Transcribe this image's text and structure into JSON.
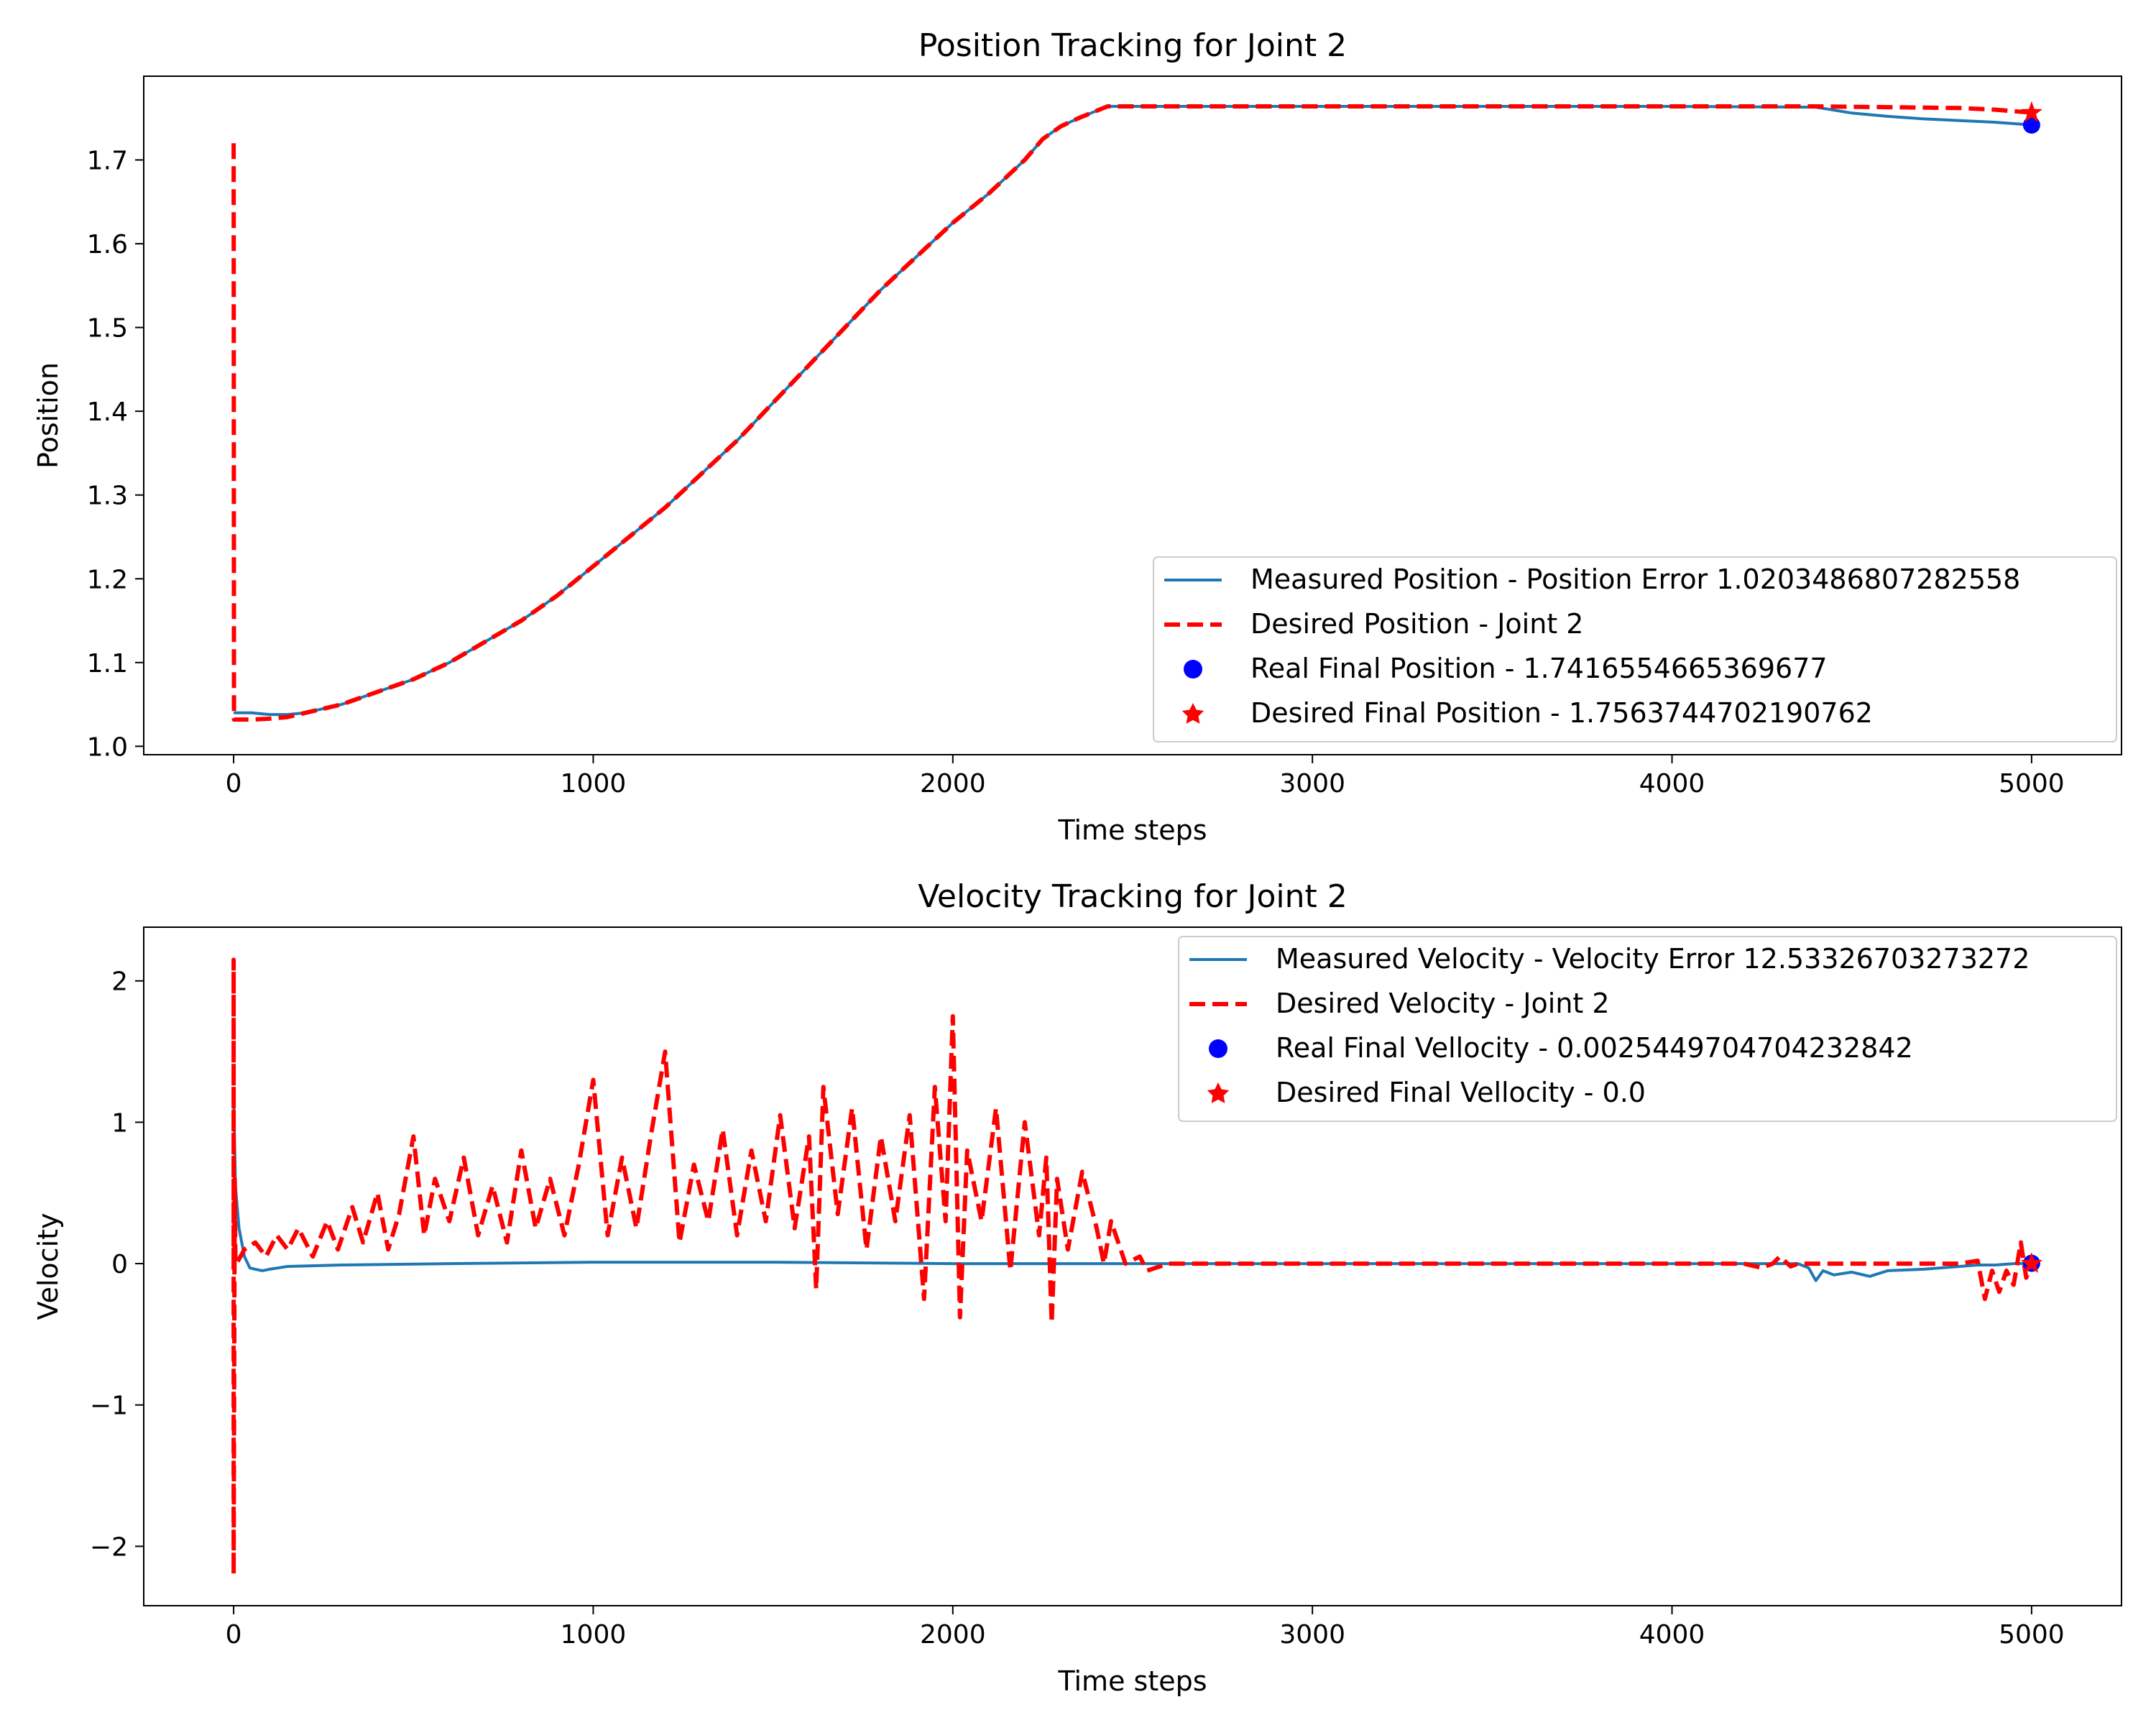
{
  "chart_data": [
    {
      "type": "line",
      "title": "Position Tracking for Joint 2",
      "xlabel": "Time steps",
      "ylabel": "Position",
      "xlim": [
        -250,
        5250
      ],
      "ylim": [
        0.99,
        1.8
      ],
      "xticks": [
        0,
        1000,
        2000,
        3000,
        4000,
        5000
      ],
      "yticks": [
        1.0,
        1.1,
        1.2,
        1.3,
        1.4,
        1.5,
        1.6,
        1.7
      ],
      "ytick_labels": [
        "1.0",
        "1.1",
        "1.2",
        "1.3",
        "1.4",
        "1.5",
        "1.6",
        "1.7"
      ],
      "legend_position": "lower-right",
      "series": [
        {
          "name": "Measured Position - Position Error 1.0203486807282558",
          "style": "solid",
          "color": "#1f77b4",
          "x": [
            0,
            50,
            100,
            150,
            200,
            300,
            400,
            500,
            600,
            700,
            800,
            900,
            1000,
            1100,
            1200,
            1300,
            1400,
            1500,
            1600,
            1700,
            1800,
            1900,
            2000,
            2100,
            2200,
            2250,
            2300,
            2350,
            2430,
            2500,
            3000,
            3500,
            4000,
            4400,
            4500,
            4600,
            4700,
            4800,
            4900,
            5000
          ],
          "y": [
            1.04,
            1.04,
            1.038,
            1.038,
            1.04,
            1.05,
            1.065,
            1.08,
            1.1,
            1.125,
            1.15,
            1.18,
            1.215,
            1.25,
            1.285,
            1.325,
            1.365,
            1.41,
            1.455,
            1.5,
            1.545,
            1.585,
            1.625,
            1.66,
            1.7,
            1.725,
            1.74,
            1.75,
            1.764,
            1.764,
            1.764,
            1.764,
            1.764,
            1.763,
            1.756,
            1.752,
            1.749,
            1.747,
            1.745,
            1.7417
          ]
        },
        {
          "name": "Desired Position - Joint 2",
          "style": "dashed",
          "color": "#ff0000",
          "x": [
            0,
            0,
            1,
            50,
            100,
            150,
            200,
            300,
            400,
            500,
            600,
            700,
            800,
            900,
            1000,
            1100,
            1200,
            1300,
            1400,
            1500,
            1600,
            1700,
            1800,
            1900,
            2000,
            2100,
            2200,
            2250,
            2300,
            2350,
            2430,
            2500,
            3000,
            3500,
            4000,
            4400,
            4600,
            4800,
            4900,
            5000
          ],
          "y": [
            1.72,
            1.72,
            1.032,
            1.032,
            1.033,
            1.035,
            1.04,
            1.05,
            1.065,
            1.08,
            1.1,
            1.125,
            1.15,
            1.18,
            1.215,
            1.25,
            1.285,
            1.325,
            1.365,
            1.41,
            1.455,
            1.5,
            1.545,
            1.585,
            1.625,
            1.66,
            1.7,
            1.725,
            1.74,
            1.75,
            1.764,
            1.764,
            1.764,
            1.764,
            1.764,
            1.764,
            1.763,
            1.762,
            1.76,
            1.7564
          ]
        }
      ],
      "points": [
        {
          "name": "Real Final Position - 1.7416554665369677",
          "marker": "circle",
          "color": "#0000ff",
          "x": 5000,
          "y": 1.7417
        },
        {
          "name": "Desired Final Position - 1.7563744702190762",
          "marker": "star",
          "color": "#ff0000",
          "x": 5000,
          "y": 1.7564
        }
      ]
    },
    {
      "type": "line",
      "title": "Velocity Tracking for Joint 2",
      "xlabel": "Time steps",
      "ylabel": "Velocity",
      "xlim": [
        -250,
        5250
      ],
      "ylim": [
        -2.42,
        2.38
      ],
      "xticks": [
        0,
        1000,
        2000,
        3000,
        4000,
        5000
      ],
      "yticks": [
        -2,
        -1,
        0,
        1,
        2
      ],
      "ytick_labels": [
        "−2",
        "−1",
        "0",
        "1",
        "2"
      ],
      "legend_position": "top-right",
      "series": [
        {
          "name": "Measured Velocity - Velocity Error 12.53326703273272",
          "style": "solid",
          "color": "#1f77b4",
          "x": [
            0,
            5,
            15,
            30,
            45,
            60,
            80,
            100,
            150,
            300,
            600,
            1000,
            1500,
            2000,
            2400,
            2500,
            3000,
            4000,
            4350,
            4380,
            4400,
            4420,
            4450,
            4500,
            4550,
            4600,
            4700,
            4800,
            4850,
            4900,
            4950,
            5000
          ],
          "y": [
            1.2,
            0.55,
            0.25,
            0.05,
            -0.03,
            -0.04,
            -0.05,
            -0.04,
            -0.02,
            -0.01,
            0.0,
            0.01,
            0.01,
            0.0,
            0.0,
            0.0,
            0.0,
            0.0,
            0.0,
            -0.03,
            -0.12,
            -0.05,
            -0.08,
            -0.06,
            -0.09,
            -0.05,
            -0.04,
            -0.02,
            -0.01,
            -0.01,
            0.0,
            0.0025
          ]
        },
        {
          "name": "Desired Velocity - Joint 2",
          "style": "dashed",
          "color": "#ff0000",
          "x": [
            0,
            0,
            0,
            3,
            5,
            8,
            30,
            60,
            90,
            120,
            150,
            180,
            220,
            260,
            290,
            330,
            360,
            400,
            430,
            460,
            500,
            530,
            560,
            600,
            640,
            680,
            720,
            760,
            800,
            840,
            880,
            920,
            960,
            1000,
            1040,
            1080,
            1120,
            1160,
            1200,
            1240,
            1280,
            1320,
            1360,
            1400,
            1440,
            1480,
            1520,
            1560,
            1600,
            1620,
            1640,
            1680,
            1720,
            1760,
            1800,
            1840,
            1880,
            1920,
            1950,
            1980,
            2000,
            2020,
            2040,
            2080,
            2120,
            2160,
            2200,
            2240,
            2260,
            2275,
            2290,
            2320,
            2360,
            2400,
            2420,
            2440,
            2480,
            2520,
            2540,
            2600,
            3000,
            3500,
            4000,
            4200,
            4250,
            4280,
            4300,
            4330,
            4350,
            4400,
            4500,
            4600,
            4700,
            4800,
            4850,
            4870,
            4890,
            4910,
            4930,
            4950,
            4970,
            4985,
            5000
          ],
          "y": [
            0,
            2.15,
            -2.2,
            0.6,
            0.0,
            0.0,
            0.1,
            0.15,
            0.05,
            0.2,
            0.1,
            0.25,
            0.05,
            0.3,
            0.1,
            0.4,
            0.15,
            0.5,
            0.1,
            0.35,
            0.9,
            0.2,
            0.6,
            0.3,
            0.75,
            0.2,
            0.55,
            0.15,
            0.8,
            0.25,
            0.6,
            0.2,
            0.7,
            1.3,
            0.2,
            0.75,
            0.25,
            0.9,
            1.5,
            0.15,
            0.7,
            0.3,
            0.95,
            0.2,
            0.8,
            0.3,
            1.05,
            0.25,
            0.9,
            -0.18,
            1.25,
            0.35,
            1.1,
            0.1,
            0.9,
            0.3,
            1.05,
            -0.25,
            1.25,
            0.3,
            1.75,
            -0.38,
            0.8,
            0.3,
            1.1,
            -0.05,
            1.0,
            0.2,
            0.75,
            -0.42,
            0.6,
            0.1,
            0.65,
            0.25,
            0.0,
            0.3,
            0.0,
            0.05,
            -0.05,
            0.0,
            0.0,
            0.0,
            0.0,
            0.0,
            -0.03,
            0.0,
            0.05,
            -0.02,
            0.0,
            0.0,
            0.0,
            0.0,
            0.0,
            0.0,
            0.02,
            -0.25,
            -0.05,
            -0.2,
            -0.05,
            -0.15,
            0.15,
            -0.1,
            0.0
          ]
        }
      ],
      "points": [
        {
          "name": "Real Final Vellocity - 0.0025449704704232842",
          "marker": "circle",
          "color": "#0000ff",
          "x": 5000,
          "y": 0.0025
        },
        {
          "name": "Desired Final Vellocity - 0.0",
          "marker": "star",
          "color": "#ff0000",
          "x": 5000,
          "y": 0.0
        }
      ]
    }
  ]
}
